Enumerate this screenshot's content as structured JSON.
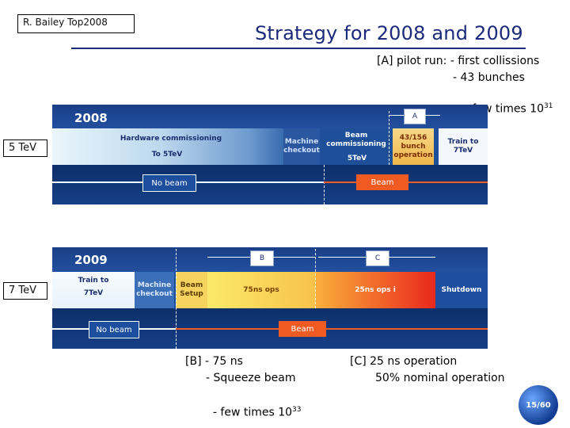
{
  "header": {
    "author": "R. Bailey Top2008",
    "title": "Strategy for 2008 and 2009"
  },
  "notes": {
    "a_line1": "[A] pilot run: - first collissions",
    "a_line2": "- 43 bunches",
    "a_line3": "- few times 10",
    "a_exp": "31",
    "b_line1": "[B] - 75 ns",
    "b_line2": "- Squeeze beam",
    "b_line3": "- few times 10",
    "b_exp": "33",
    "c_line1": "[C] 25 ns operation",
    "c_line2": "50% nominal operation"
  },
  "labels": {
    "energy_2008": "5 TeV",
    "energy_2009": "7 TeV"
  },
  "panel2008": {
    "year": "2008",
    "tag_a": "A",
    "hw_commissioning": "Hardware commissioning",
    "to_5tev": "To 5TeV",
    "machine_checkout": "Machine checkout",
    "beam_commissioning": "Beam commissioning",
    "beam_5tev": "5TeV",
    "bunch_op": "43/156 bunch operation",
    "train_to": "Train to 7TeV",
    "no_beam": "No beam",
    "beam": "Beam"
  },
  "panel2009": {
    "year": "2009",
    "tag_b": "B",
    "tag_c": "C",
    "train_to": "Train to",
    "train_to_val": "7TeV",
    "machine_checkout": "Machine checkout",
    "beam_setup": "Beam Setup",
    "ops75": "75ns ops",
    "ops25": "25ns ops i",
    "shutdown": "Shutdown",
    "no_beam": "No beam",
    "beam": "Beam"
  },
  "page": {
    "number": "15/60"
  },
  "colors": {
    "title": "#1b2a7a",
    "panel": "#1d4f9e",
    "beam": "#f05a23"
  }
}
